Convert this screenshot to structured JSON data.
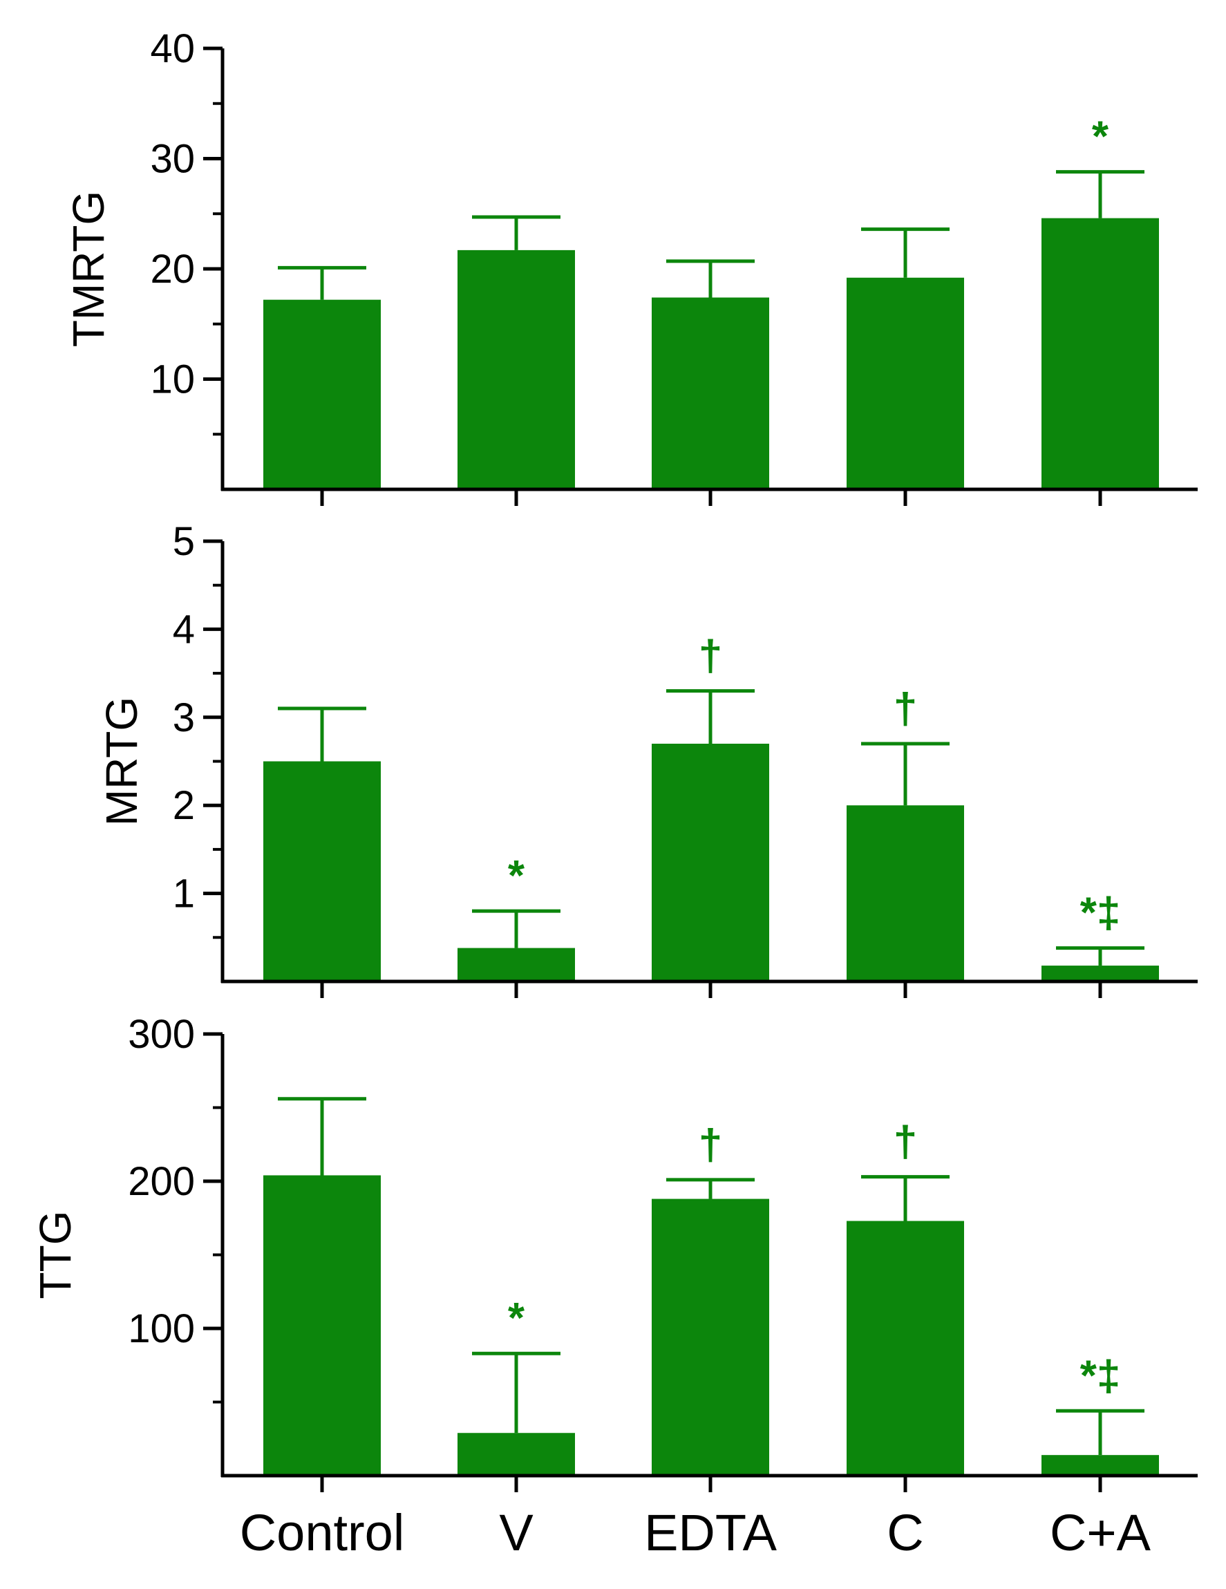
{
  "chart_data": [
    {
      "type": "bar",
      "ylabel": "TMRTG",
      "ylim": [
        0,
        40
      ],
      "yticks": [
        10,
        20,
        30,
        40
      ],
      "minor_step": 5,
      "categories": [
        "Control",
        "V",
        "EDTA",
        "C",
        "C+A"
      ],
      "values": [
        17.2,
        21.7,
        17.4,
        19.2,
        24.6
      ],
      "errors": [
        2.9,
        3.0,
        3.3,
        4.4,
        4.2
      ],
      "annotations": [
        "",
        "",
        "",
        "",
        "*"
      ]
    },
    {
      "type": "bar",
      "ylabel": "MRTG",
      "ylim": [
        0,
        5
      ],
      "yticks": [
        1,
        2,
        3,
        4,
        5
      ],
      "minor_step": 0.5,
      "categories": [
        "Control",
        "V",
        "EDTA",
        "C",
        "C+A"
      ],
      "values": [
        2.5,
        0.38,
        2.7,
        2.0,
        0.18
      ],
      "errors": [
        0.6,
        0.42,
        0.6,
        0.7,
        0.2
      ],
      "annotations": [
        "",
        "*",
        "†",
        "†",
        "*‡"
      ]
    },
    {
      "type": "bar",
      "ylabel": "TTG",
      "ylim": [
        0,
        300
      ],
      "yticks": [
        100,
        200,
        300
      ],
      "minor_step": 50,
      "categories": [
        "Control",
        "V",
        "EDTA",
        "C",
        "C+A"
      ],
      "values": [
        204,
        29,
        188,
        173,
        14
      ],
      "errors": [
        52,
        54,
        13,
        30,
        30
      ],
      "annotations": [
        "",
        "*",
        "†",
        "†",
        "*‡"
      ]
    }
  ],
  "colors": {
    "bar": "#0c860c",
    "axis": "#000000"
  }
}
